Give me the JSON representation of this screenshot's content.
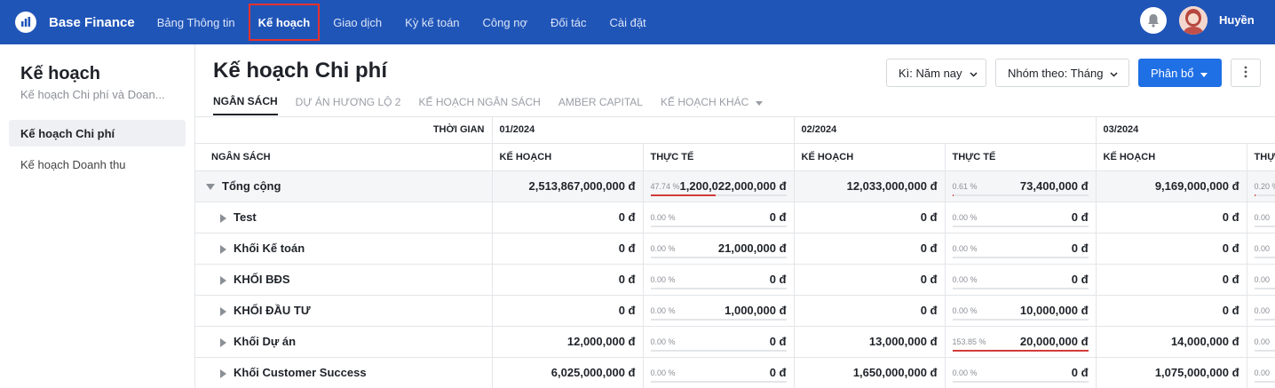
{
  "app": {
    "brand": "Base Finance",
    "user": "Huyền"
  },
  "nav": [
    "Bảng Thông tin",
    "Kế hoạch",
    "Giao dịch",
    "Kỳ kế toán",
    "Công nợ",
    "Đối tác",
    "Cài đặt"
  ],
  "sidebar": {
    "title": "Kế hoạch",
    "subtitle": "Kế hoạch Chi phí và Doan...",
    "items": [
      "Kế hoạch Chi phí",
      "Kế hoạch Doanh thu"
    ]
  },
  "page": {
    "title": "Kế hoạch Chi phí"
  },
  "toolbar": {
    "period": "Kì: Năm nay",
    "group": "Nhóm theo: Tháng",
    "allocate": "Phân bổ"
  },
  "tabs": [
    "NGÂN SÁCH",
    "DỰ ÁN HƯƠNG LỘ 2",
    "KẾ HOẠCH NGÂN SÁCH",
    "AMBER CAPITAL",
    "KẾ HOẠCH KHÁC"
  ],
  "table": {
    "time_label": "THỜI GIAN",
    "budget_label": "NGÂN SÁCH",
    "months": [
      "01/2024",
      "02/2024",
      "03/2024"
    ],
    "plan_label": "KẾ HOẠCH",
    "actual_label": "THỰC TẾ",
    "actual_label_cut": "THỰ",
    "rows": [
      {
        "name": "Tổng cộng",
        "cells": [
          {
            "plan": "2,513,867,000,000 đ",
            "pct": "47.74 %",
            "actual": "1,200,022,000,000 đ",
            "fill": 0.4774
          },
          {
            "plan": "12,033,000,000 đ",
            "pct": "0.61 %",
            "actual": "73,400,000 đ",
            "fill": 0.0061
          },
          {
            "plan": "9,169,000,000 đ",
            "pct": "0.20 %",
            "fill": 0.002
          }
        ]
      },
      {
        "name": "Test",
        "cells": [
          {
            "plan": "0 đ",
            "pct": "0.00 %",
            "actual": "0 đ",
            "fill": 0
          },
          {
            "plan": "0 đ",
            "pct": "0.00 %",
            "actual": "0 đ",
            "fill": 0
          },
          {
            "plan": "0 đ",
            "pct": "0.00",
            "fill": 0
          }
        ]
      },
      {
        "name": "Khối Kế toán",
        "cells": [
          {
            "plan": "0 đ",
            "pct": "0.00 %",
            "actual": "21,000,000 đ",
            "fill": 0
          },
          {
            "plan": "0 đ",
            "pct": "0.00 %",
            "actual": "0 đ",
            "fill": 0
          },
          {
            "plan": "0 đ",
            "pct": "0.00",
            "fill": 0
          }
        ]
      },
      {
        "name": "KHỐI BĐS",
        "cells": [
          {
            "plan": "0 đ",
            "pct": "0.00 %",
            "actual": "0 đ",
            "fill": 0
          },
          {
            "plan": "0 đ",
            "pct": "0.00 %",
            "actual": "0 đ",
            "fill": 0
          },
          {
            "plan": "0 đ",
            "pct": "0.00",
            "fill": 0
          }
        ]
      },
      {
        "name": "KHỐI ĐẦU TƯ",
        "cells": [
          {
            "plan": "0 đ",
            "pct": "0.00 %",
            "actual": "1,000,000 đ",
            "fill": 0
          },
          {
            "plan": "0 đ",
            "pct": "0.00 %",
            "actual": "10,000,000 đ",
            "fill": 0
          },
          {
            "plan": "0 đ",
            "pct": "0.00",
            "fill": 0
          }
        ]
      },
      {
        "name": "Khối Dự án",
        "cells": [
          {
            "plan": "12,000,000 đ",
            "pct": "0.00 %",
            "actual": "0 đ",
            "fill": 0
          },
          {
            "plan": "13,000,000 đ",
            "pct": "153.85 %",
            "actual": "20,000,000 đ",
            "fill": 1.5385
          },
          {
            "plan": "14,000,000 đ",
            "pct": "0.00",
            "fill": 0
          }
        ]
      },
      {
        "name": "Khối Customer Success",
        "cells": [
          {
            "plan": "6,025,000,000 đ",
            "pct": "0.00 %",
            "actual": "0 đ",
            "fill": 0
          },
          {
            "plan": "1,650,000,000 đ",
            "pct": "0.00 %",
            "actual": "0 đ",
            "fill": 0
          },
          {
            "plan": "1,075,000,000 đ",
            "pct": "0.00",
            "fill": 0
          }
        ]
      }
    ]
  }
}
